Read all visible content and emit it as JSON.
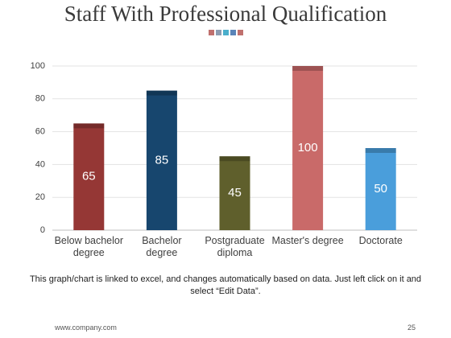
{
  "chart_data": {
    "type": "bar",
    "title": "Staff With Professional Qualification",
    "categories": [
      "Below bachelor degree",
      "Bachelor degree",
      "Postgraduate diploma",
      "Master's degree",
      "Doctorate"
    ],
    "values": [
      65,
      85,
      45,
      100,
      50
    ],
    "colors": [
      "#953735",
      "#17466e",
      "#5f5f2c",
      "#c96a69",
      "#4a9edb"
    ],
    "ylim": [
      0,
      100
    ],
    "yticks": [
      0,
      20,
      40,
      60,
      80,
      100
    ],
    "grid": true
  },
  "note": "This graph/chart is linked to excel, and changes automatically based on data. Just left click on it and select “Edit Data”.",
  "footer": {
    "website": "www.company.com",
    "page": "25"
  }
}
